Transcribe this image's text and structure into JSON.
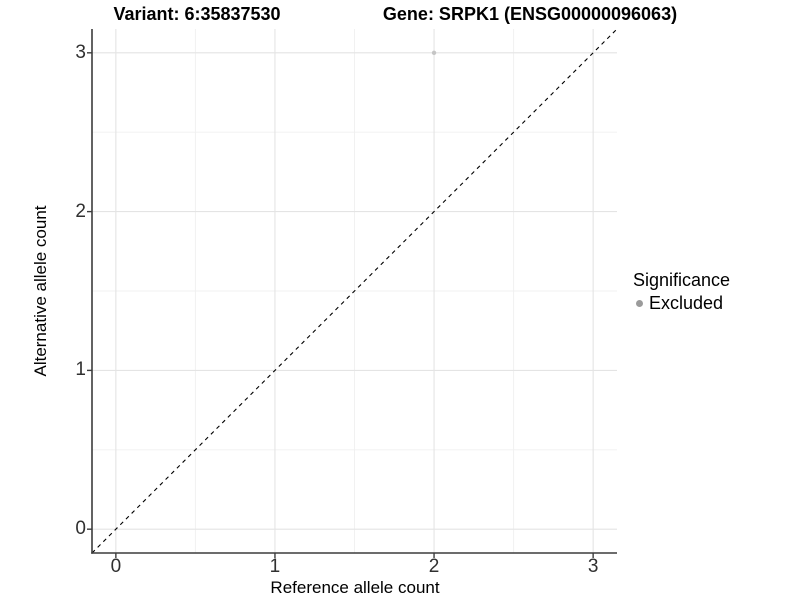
{
  "chart_data": {
    "type": "scatter",
    "titles": {
      "variant": "Variant: 6:35837530",
      "gene": "Gene: SRPK1 (ENSG00000096063)"
    },
    "xlabel": "Reference allele count",
    "ylabel": "Alternative allele count",
    "xlim": [
      -0.15,
      3.15
    ],
    "ylim": [
      -0.15,
      3.15
    ],
    "x_ticks": [
      0,
      1,
      2,
      3
    ],
    "y_ticks": [
      0,
      1,
      2,
      3
    ],
    "grid": {
      "major": true,
      "minor": true
    },
    "identity_line": {
      "style": "dashed",
      "color": "#000000",
      "from": [
        -0.15,
        -0.15
      ],
      "to": [
        3.15,
        3.15
      ]
    },
    "points": [
      {
        "x": 2,
        "y": 3,
        "series": "Excluded",
        "color": "#c5c5c5",
        "radius_px": 2.2
      }
    ],
    "legend": {
      "title": "Significance",
      "position": "right",
      "items": [
        {
          "label": "Excluded",
          "color": "#9b9b9b"
        }
      ]
    }
  },
  "colors": {
    "background": "#ffffff",
    "axis_line": "#3c3c3c",
    "tick_mark": "#3c3c3c",
    "tick_text": "#303030",
    "grid_major": "#e4e4e4",
    "grid_minor": "#f0f0f0",
    "title_text": "#000000"
  }
}
